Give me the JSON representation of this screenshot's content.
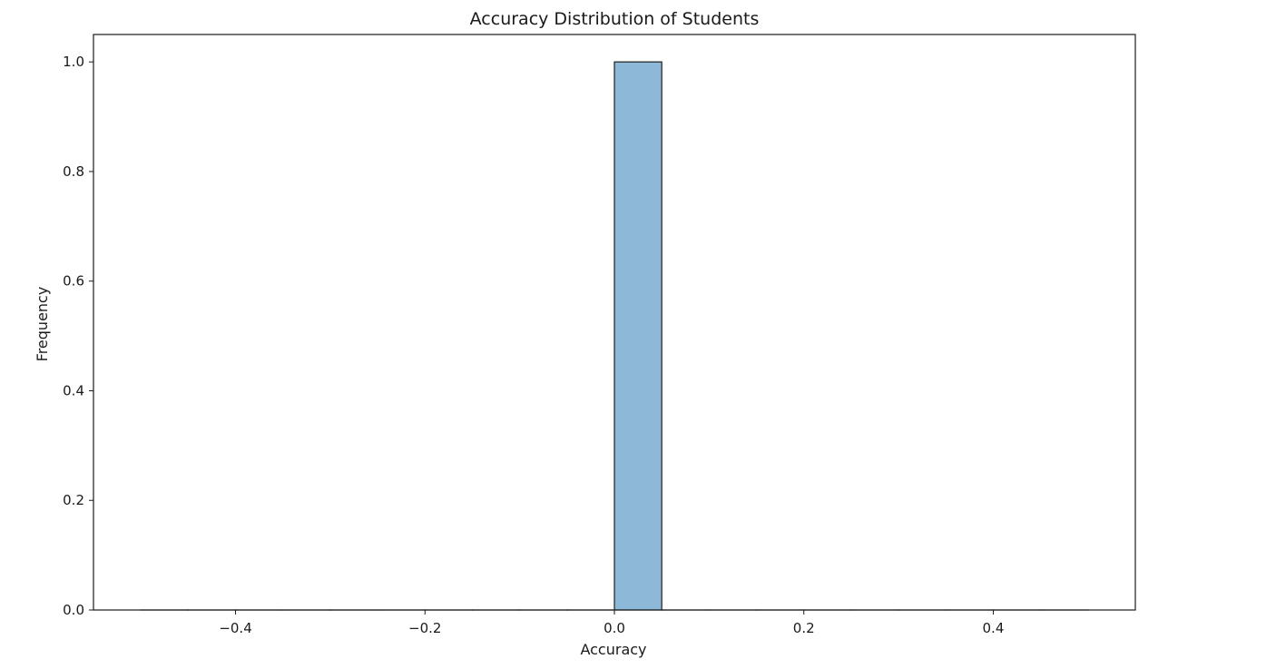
{
  "chart_data": {
    "type": "bar",
    "title": "Accuracy Distribution of Students",
    "xlabel": "Accuracy",
    "ylabel": "Frequency",
    "xlim": [
      -0.55,
      0.55
    ],
    "ylim": [
      0,
      1.05
    ],
    "xticks": [
      -0.4,
      -0.2,
      0.0,
      0.2,
      0.4
    ],
    "xtick_labels": [
      "−0.4",
      "−0.2",
      "0.0",
      "0.2",
      "0.4"
    ],
    "yticks": [
      0.0,
      0.2,
      0.4,
      0.6,
      0.8,
      1.0
    ],
    "ytick_labels": [
      "0.0",
      "0.2",
      "0.4",
      "0.6",
      "0.8",
      "1.0"
    ],
    "bins": [
      {
        "x0": -0.5,
        "x1": -0.45,
        "count": 0
      },
      {
        "x0": -0.45,
        "x1": -0.4,
        "count": 0
      },
      {
        "x0": -0.4,
        "x1": -0.35,
        "count": 0
      },
      {
        "x0": -0.35,
        "x1": -0.3,
        "count": 0
      },
      {
        "x0": -0.3,
        "x1": -0.25,
        "count": 0
      },
      {
        "x0": -0.25,
        "x1": -0.2,
        "count": 0
      },
      {
        "x0": -0.2,
        "x1": -0.15,
        "count": 0
      },
      {
        "x0": -0.15,
        "x1": -0.1,
        "count": 0
      },
      {
        "x0": -0.1,
        "x1": -0.05,
        "count": 0
      },
      {
        "x0": -0.05,
        "x1": 0.0,
        "count": 0
      },
      {
        "x0": 0.0,
        "x1": 0.05,
        "count": 1
      },
      {
        "x0": 0.05,
        "x1": 0.1,
        "count": 0
      },
      {
        "x0": 0.1,
        "x1": 0.15,
        "count": 0
      },
      {
        "x0": 0.15,
        "x1": 0.2,
        "count": 0
      },
      {
        "x0": 0.2,
        "x1": 0.25,
        "count": 0
      },
      {
        "x0": 0.25,
        "x1": 0.3,
        "count": 0
      },
      {
        "x0": 0.3,
        "x1": 0.35,
        "count": 0
      },
      {
        "x0": 0.35,
        "x1": 0.4,
        "count": 0
      },
      {
        "x0": 0.4,
        "x1": 0.45,
        "count": 0
      },
      {
        "x0": 0.45,
        "x1": 0.5,
        "count": 0
      }
    ],
    "bar_color": "#8db8d8",
    "edge_color": "#1f1f1f",
    "grid": false,
    "legend": "none"
  }
}
